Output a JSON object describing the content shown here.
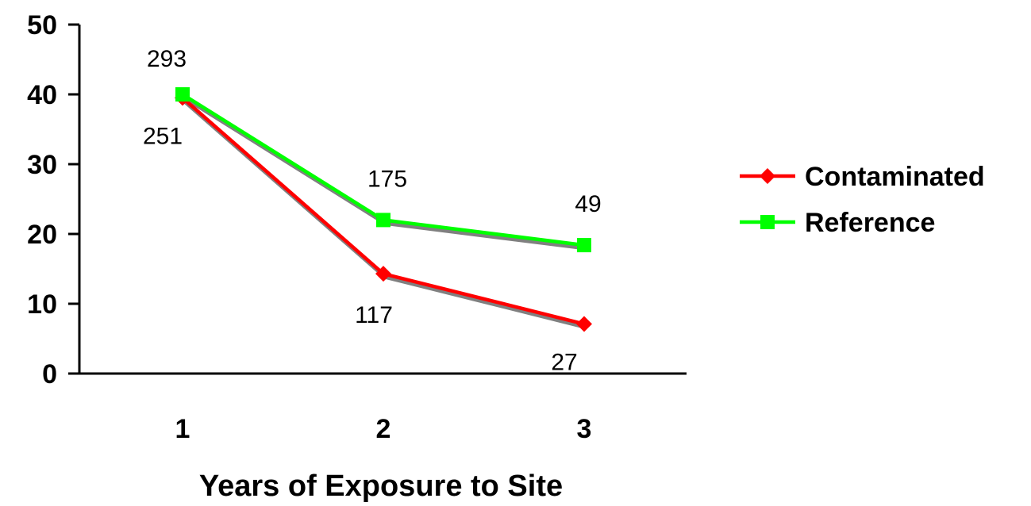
{
  "chart_data": {
    "type": "line",
    "title": "",
    "xlabel": "Years of Exposure to Site",
    "ylabel": "",
    "categories": [
      "1",
      "2",
      "3"
    ],
    "yticks": [
      "0",
      "10",
      "20",
      "30",
      "40",
      "50"
    ],
    "ylim": [
      0,
      50
    ],
    "grid": false,
    "legend_position": "right",
    "series": [
      {
        "name": "Contaminated",
        "color": "#ff0000",
        "marker": "diamond",
        "values": [
          39.5,
          14.3,
          7.1
        ],
        "labels": [
          "251",
          "117",
          "27"
        ],
        "label_position": [
          "below-left",
          "below",
          "below-left"
        ]
      },
      {
        "name": "Reference",
        "color": "#00ff00",
        "marker": "square",
        "values": [
          40,
          22,
          18.4
        ],
        "labels": [
          "293",
          "175",
          "49"
        ],
        "label_position": [
          "above-left",
          "above",
          "above"
        ]
      }
    ]
  }
}
